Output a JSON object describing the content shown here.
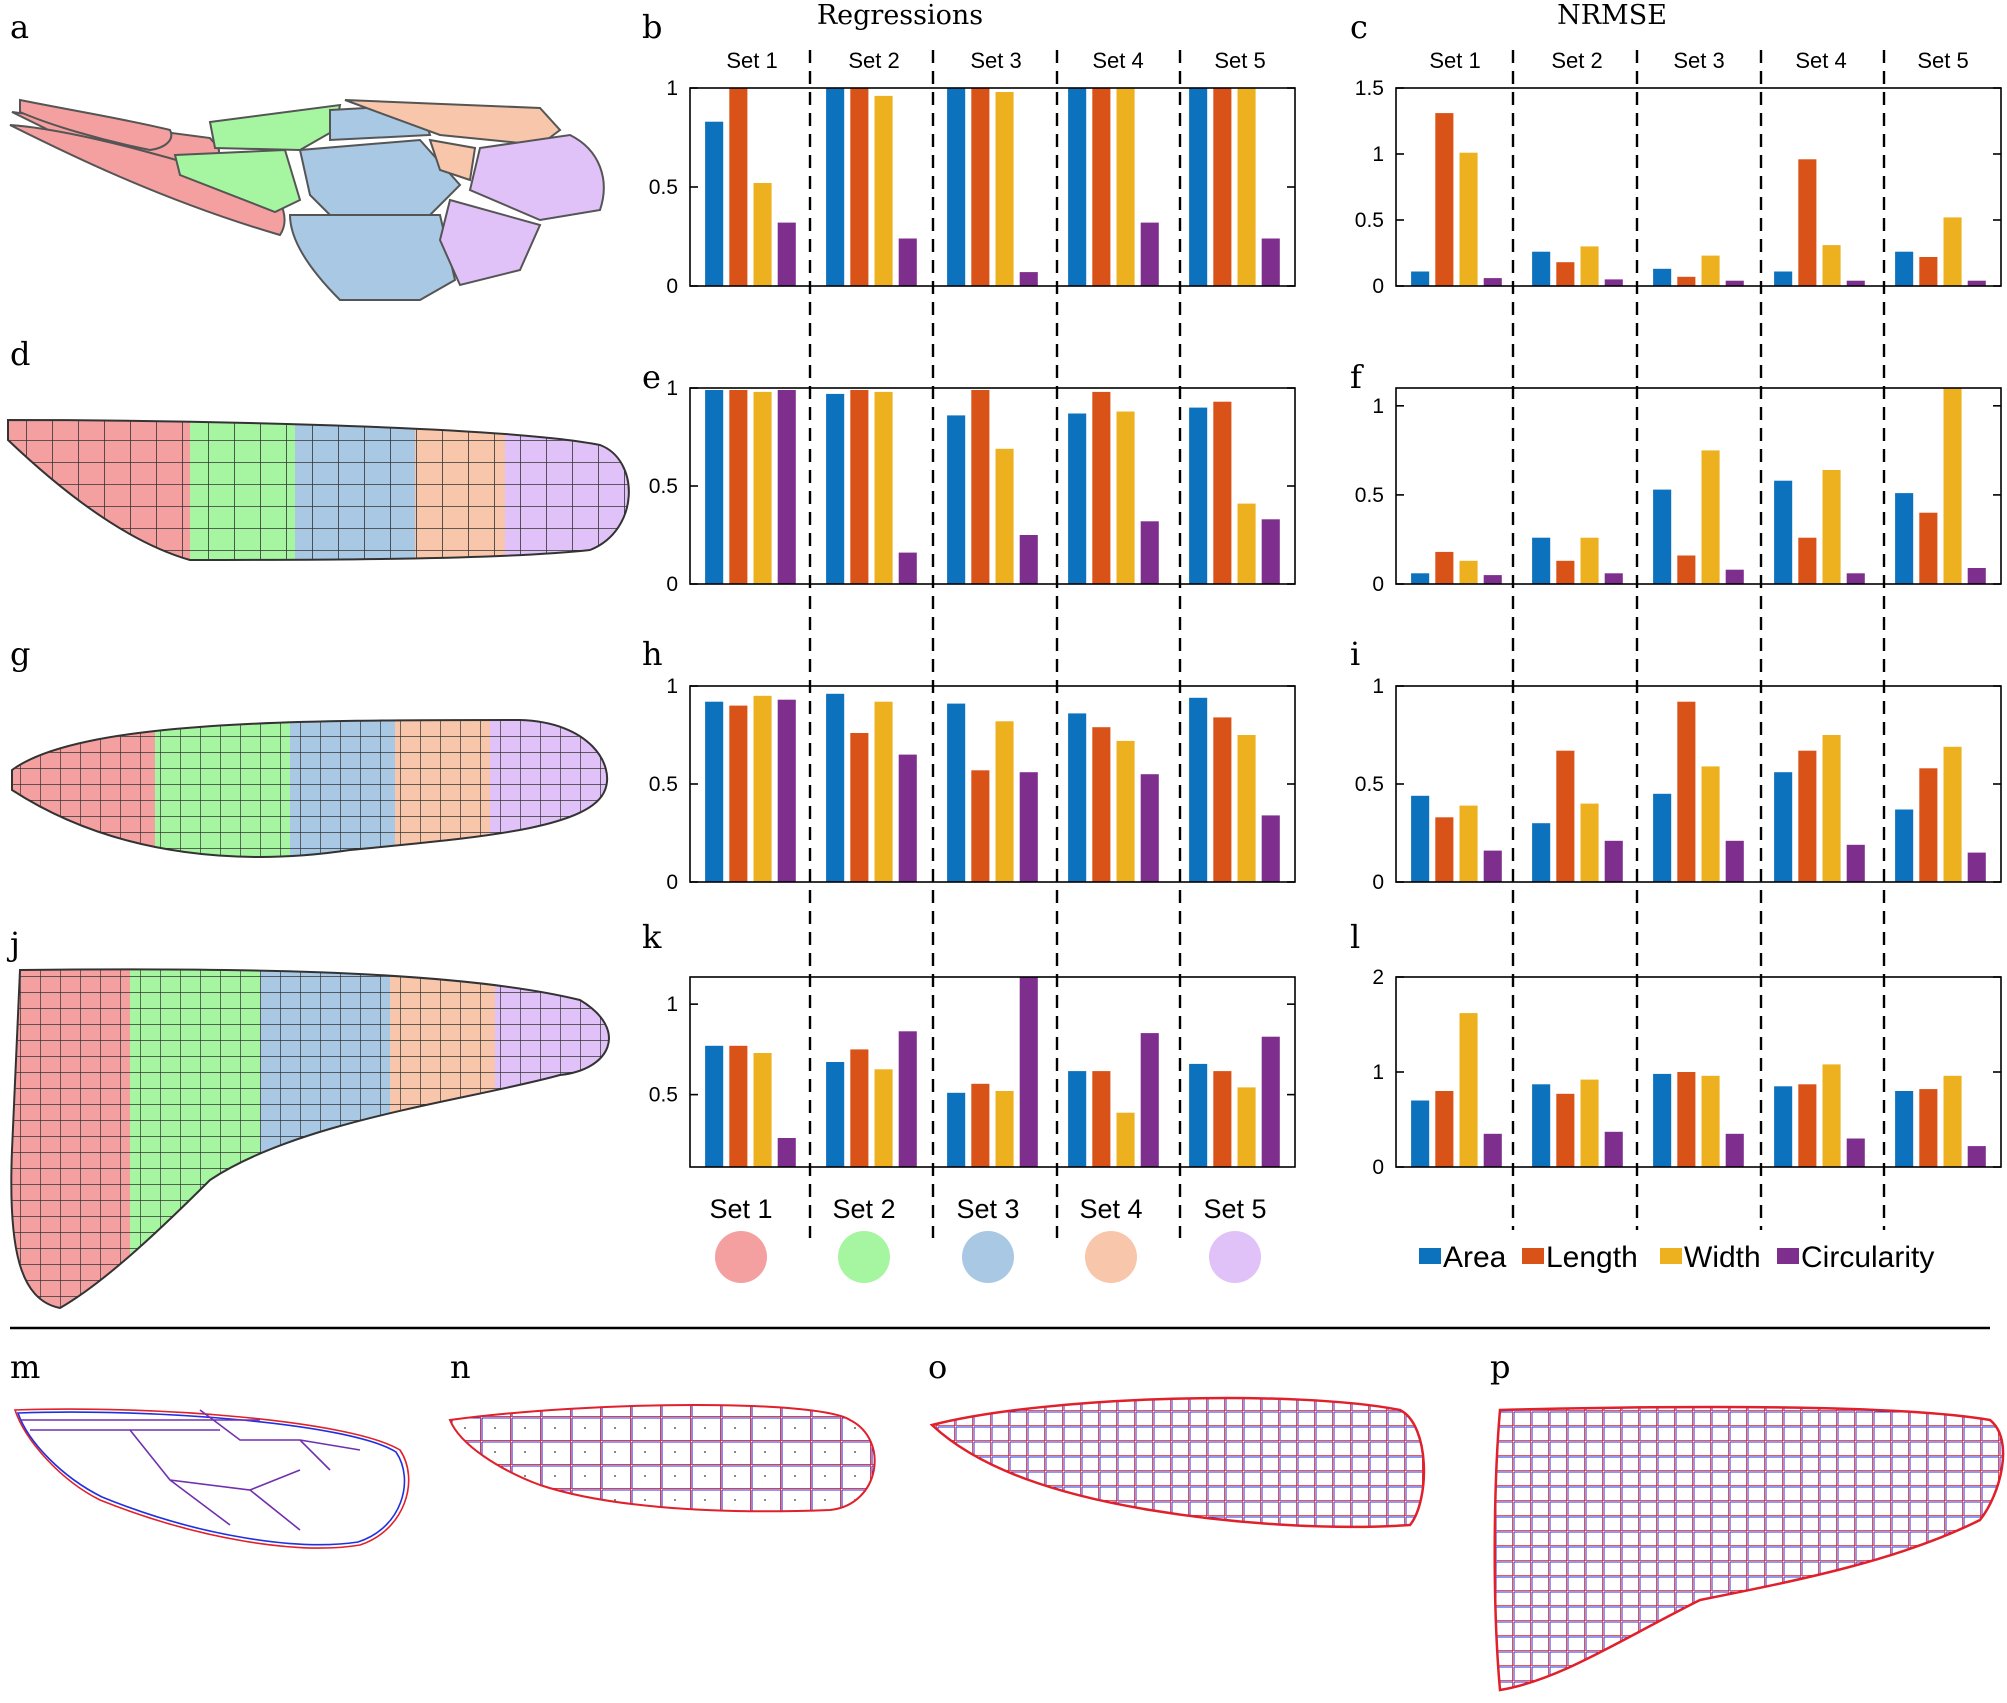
{
  "columns": {
    "regressions_title": "Regressions",
    "nrmse_title": "NRMSE"
  },
  "set_labels": [
    "Set 1",
    "Set 2",
    "Set 3",
    "Set 4",
    "Set 5"
  ],
  "set_colors": [
    "#f5a0a0",
    "#a6f5a0",
    "#a8c8e4",
    "#f8c6aa",
    "#e0c2f8"
  ],
  "series_colors": {
    "Area": "#0c72bd",
    "Length": "#d95319",
    "Width": "#edb120",
    "Circularity": "#7e2f8e"
  },
  "legend": [
    "Area",
    "Length",
    "Width",
    "Circularity"
  ],
  "panel_letters": {
    "a": "a",
    "b": "b",
    "c": "c",
    "d": "d",
    "e": "e",
    "f": "f",
    "g": "g",
    "h": "h",
    "i": "i",
    "j": "j",
    "k": "k",
    "l": "l",
    "m": "m",
    "n": "n",
    "o": "o",
    "p": "p"
  },
  "chart_data": [
    {
      "id": "b",
      "type": "bar",
      "column": "Regressions",
      "categories": [
        "Set 1",
        "Set 2",
        "Set 3",
        "Set 4",
        "Set 5"
      ],
      "ylim": [
        0,
        1
      ],
      "yticks": [
        "0",
        "0.5",
        "1"
      ],
      "ytick_values": [
        0,
        0.5,
        1
      ],
      "series": [
        {
          "name": "Area",
          "values": [
            0.83,
            1.0,
            1.0,
            1.0,
            1.0
          ]
        },
        {
          "name": "Length",
          "values": [
            1.0,
            1.0,
            1.0,
            1.0,
            1.0
          ]
        },
        {
          "name": "Width",
          "values": [
            0.52,
            0.96,
            0.98,
            1.0,
            1.0
          ]
        },
        {
          "name": "Circularity",
          "values": [
            0.32,
            0.24,
            0.07,
            0.32,
            0.24
          ]
        }
      ]
    },
    {
      "id": "c",
      "type": "bar",
      "column": "NRMSE",
      "categories": [
        "Set 1",
        "Set 2",
        "Set 3",
        "Set 4",
        "Set 5"
      ],
      "ylim": [
        0,
        1.5
      ],
      "yticks": [
        "0",
        "0.5",
        "1",
        "1.5"
      ],
      "ytick_values": [
        0,
        0.5,
        1,
        1.5
      ],
      "series": [
        {
          "name": "Area",
          "values": [
            0.11,
            0.26,
            0.13,
            0.11,
            0.26
          ]
        },
        {
          "name": "Length",
          "values": [
            1.31,
            0.18,
            0.07,
            0.96,
            0.22
          ]
        },
        {
          "name": "Width",
          "values": [
            1.01,
            0.3,
            0.23,
            0.31,
            0.52
          ]
        },
        {
          "name": "Circularity",
          "values": [
            0.06,
            0.05,
            0.04,
            0.04,
            0.04
          ]
        }
      ]
    },
    {
      "id": "e",
      "type": "bar",
      "column": "Regressions",
      "categories": [
        "Set 1",
        "Set 2",
        "Set 3",
        "Set 4",
        "Set 5"
      ],
      "ylim": [
        0,
        1
      ],
      "yticks": [
        "0",
        "0.5",
        "1"
      ],
      "ytick_values": [
        0,
        0.5,
        1
      ],
      "series": [
        {
          "name": "Area",
          "values": [
            0.99,
            0.97,
            0.86,
            0.87,
            0.9
          ]
        },
        {
          "name": "Length",
          "values": [
            0.99,
            0.99,
            0.99,
            0.98,
            0.93
          ]
        },
        {
          "name": "Width",
          "values": [
            0.98,
            0.98,
            0.69,
            0.88,
            0.41
          ]
        },
        {
          "name": "Circularity",
          "values": [
            0.99,
            0.16,
            0.25,
            0.32,
            0.33
          ]
        }
      ]
    },
    {
      "id": "f",
      "type": "bar",
      "column": "NRMSE",
      "categories": [
        "Set 1",
        "Set 2",
        "Set 3",
        "Set 4",
        "Set 5"
      ],
      "ylim": [
        0,
        1.1
      ],
      "yticks": [
        "0",
        "0.5",
        "1"
      ],
      "ytick_values": [
        0,
        0.5,
        1
      ],
      "series": [
        {
          "name": "Area",
          "values": [
            0.06,
            0.26,
            0.53,
            0.58,
            0.51
          ]
        },
        {
          "name": "Length",
          "values": [
            0.18,
            0.13,
            0.16,
            0.26,
            0.4
          ]
        },
        {
          "name": "Width",
          "values": [
            0.13,
            0.26,
            0.75,
            0.64,
            1.12
          ]
        },
        {
          "name": "Circularity",
          "values": [
            0.05,
            0.06,
            0.08,
            0.06,
            0.09
          ]
        }
      ]
    },
    {
      "id": "h",
      "type": "bar",
      "column": "Regressions",
      "categories": [
        "Set 1",
        "Set 2",
        "Set 3",
        "Set 4",
        "Set 5"
      ],
      "ylim": [
        0,
        1
      ],
      "yticks": [
        "0",
        "0.5",
        "1"
      ],
      "ytick_values": [
        0,
        0.5,
        1
      ],
      "series": [
        {
          "name": "Area",
          "values": [
            0.92,
            0.96,
            0.91,
            0.86,
            0.94
          ]
        },
        {
          "name": "Length",
          "values": [
            0.9,
            0.76,
            0.57,
            0.79,
            0.84
          ]
        },
        {
          "name": "Width",
          "values": [
            0.95,
            0.92,
            0.82,
            0.72,
            0.75
          ]
        },
        {
          "name": "Circularity",
          "values": [
            0.93,
            0.65,
            0.56,
            0.55,
            0.34
          ]
        }
      ]
    },
    {
      "id": "i",
      "type": "bar",
      "column": "NRMSE",
      "categories": [
        "Set 1",
        "Set 2",
        "Set 3",
        "Set 4",
        "Set 5"
      ],
      "ylim": [
        0,
        1
      ],
      "yticks": [
        "0",
        "0.5",
        "1"
      ],
      "ytick_values": [
        0,
        0.5,
        1
      ],
      "series": [
        {
          "name": "Area",
          "values": [
            0.44,
            0.3,
            0.45,
            0.56,
            0.37
          ]
        },
        {
          "name": "Length",
          "values": [
            0.33,
            0.67,
            0.92,
            0.67,
            0.58
          ]
        },
        {
          "name": "Width",
          "values": [
            0.39,
            0.4,
            0.59,
            0.75,
            0.69
          ]
        },
        {
          "name": "Circularity",
          "values": [
            0.16,
            0.21,
            0.21,
            0.19,
            0.15
          ]
        }
      ]
    },
    {
      "id": "k",
      "type": "bar",
      "column": "Regressions",
      "categories": [
        "Set 1",
        "Set 2",
        "Set 3",
        "Set 4",
        "Set 5"
      ],
      "ylim": [
        0.1,
        1.15
      ],
      "yticks": [
        "0.5",
        "1"
      ],
      "ytick_values": [
        0.5,
        1
      ],
      "series": [
        {
          "name": "Area",
          "values": [
            0.77,
            0.68,
            0.51,
            0.63,
            0.67
          ]
        },
        {
          "name": "Length",
          "values": [
            0.77,
            0.75,
            0.56,
            0.63,
            0.63
          ]
        },
        {
          "name": "Width",
          "values": [
            0.73,
            0.64,
            0.52,
            0.4,
            0.54
          ]
        },
        {
          "name": "Circularity",
          "values": [
            0.26,
            0.85,
            1.15,
            0.84,
            0.82
          ]
        }
      ]
    },
    {
      "id": "l",
      "type": "bar",
      "column": "NRMSE",
      "categories": [
        "Set 1",
        "Set 2",
        "Set 3",
        "Set 4",
        "Set 5"
      ],
      "ylim": [
        0,
        2
      ],
      "yticks": [
        "0",
        "1",
        "2"
      ],
      "ytick_values": [
        0,
        1,
        2
      ],
      "series": [
        {
          "name": "Area",
          "values": [
            0.7,
            0.87,
            0.98,
            0.85,
            0.8
          ]
        },
        {
          "name": "Length",
          "values": [
            0.8,
            0.77,
            1.0,
            0.87,
            0.82
          ]
        },
        {
          "name": "Width",
          "values": [
            1.62,
            0.92,
            0.96,
            1.08,
            0.96
          ]
        },
        {
          "name": "Circularity",
          "values": [
            0.35,
            0.37,
            0.35,
            0.3,
            0.22
          ]
        }
      ]
    }
  ]
}
